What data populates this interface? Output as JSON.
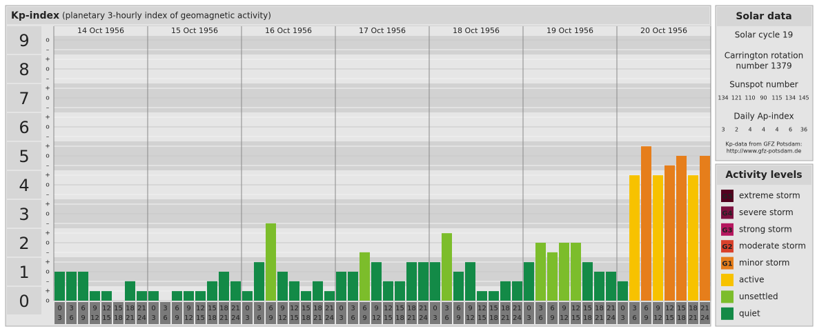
{
  "chart_data": {
    "type": "bar",
    "title": "Kp-index",
    "subtitle": "(planetary 3-hourly index of geomagnetic activity)",
    "ylim": [
      0,
      9
    ],
    "yticks": [
      0,
      1,
      2,
      3,
      4,
      5,
      6,
      7,
      8,
      9
    ],
    "minor_labels": [
      "o",
      "+",
      "–"
    ],
    "hour_labels": [
      [
        0,
        3
      ],
      [
        3,
        6
      ],
      [
        6,
        9
      ],
      [
        9,
        12
      ],
      [
        12,
        15
      ],
      [
        15,
        18
      ],
      [
        18,
        21
      ],
      [
        21,
        24
      ]
    ],
    "days": [
      {
        "date": "14 Oct 1956",
        "values": [
          1,
          1,
          1,
          0.33,
          0.33,
          0,
          0.67,
          0.33
        ],
        "colors": [
          "#138a47",
          "#138a47",
          "#138a47",
          "#138a47",
          "#138a47",
          "#138a47",
          "#138a47",
          "#138a47"
        ]
      },
      {
        "date": "15 Oct 1956",
        "values": [
          0.33,
          0,
          0.33,
          0.33,
          0.33,
          0.67,
          1,
          0.67
        ],
        "colors": [
          "#138a47",
          "#138a47",
          "#138a47",
          "#138a47",
          "#138a47",
          "#138a47",
          "#138a47",
          "#138a47"
        ]
      },
      {
        "date": "16 Oct 1956",
        "values": [
          0.33,
          1.33,
          2.67,
          1,
          0.67,
          0.33,
          0.67,
          0.33
        ],
        "colors": [
          "#138a47",
          "#138a47",
          "#7cbd2b",
          "#138a47",
          "#138a47",
          "#138a47",
          "#138a47",
          "#138a47"
        ]
      },
      {
        "date": "17 Oct 1956",
        "values": [
          1,
          1,
          1.67,
          1.33,
          0.67,
          0.67,
          1.33,
          1.33
        ],
        "colors": [
          "#138a47",
          "#138a47",
          "#7cbd2b",
          "#138a47",
          "#138a47",
          "#138a47",
          "#138a47",
          "#138a47"
        ]
      },
      {
        "date": "18 Oct 1956",
        "values": [
          1.33,
          2.33,
          1,
          1.33,
          0.33,
          0.33,
          0.67,
          0.67
        ],
        "colors": [
          "#138a47",
          "#7cbd2b",
          "#138a47",
          "#138a47",
          "#138a47",
          "#138a47",
          "#138a47",
          "#138a47"
        ]
      },
      {
        "date": "19 Oct 1956",
        "values": [
          1.33,
          2,
          1.67,
          2,
          2,
          1.33,
          1,
          1
        ],
        "colors": [
          "#138a47",
          "#7cbd2b",
          "#7cbd2b",
          "#7cbd2b",
          "#7cbd2b",
          "#138a47",
          "#138a47",
          "#138a47"
        ]
      },
      {
        "date": "20 Oct 1956",
        "values": [
          0.67,
          4.33,
          5.33,
          4.33,
          4.67,
          5,
          4.33,
          5
        ],
        "colors": [
          "#138a47",
          "#f7c200",
          "#e67e1b",
          "#f7c200",
          "#e67e1b",
          "#e67e1b",
          "#f7c200",
          "#e67e1b"
        ]
      }
    ],
    "solar_data": {
      "title": "Solar data",
      "cycle": "Solar cycle 19",
      "rotation": [
        "Carrington rotation",
        "number 1379"
      ],
      "sunspot_title": "Sunspot number",
      "sunspots": [
        134,
        121,
        110,
        90,
        115,
        134,
        145
      ],
      "ap_title": "Daily Ap-index",
      "ap": [
        3,
        2,
        4,
        4,
        4,
        6,
        36
      ],
      "source": [
        "Kp-data from GFZ Potsdam:",
        "http://www.gfz-potsdam.de"
      ]
    },
    "legend": {
      "title": "Activity levels",
      "items": [
        {
          "badge": "G5",
          "name": "extreme storm",
          "color": "#52001f"
        },
        {
          "badge": "G4",
          "name": "severe storm",
          "color": "#7b0f3e"
        },
        {
          "badge": "G3",
          "name": "strong storm",
          "color": "#b5175f"
        },
        {
          "badge": "G2",
          "name": "moderate storm",
          "color": "#d9412b"
        },
        {
          "badge": "G1",
          "name": "minor storm",
          "color": "#e67e1b"
        },
        {
          "name": "active",
          "color": "#f7c200"
        },
        {
          "name": "unsettled",
          "color": "#7cbd2b"
        },
        {
          "name": "quiet",
          "color": "#138a47"
        }
      ]
    }
  }
}
